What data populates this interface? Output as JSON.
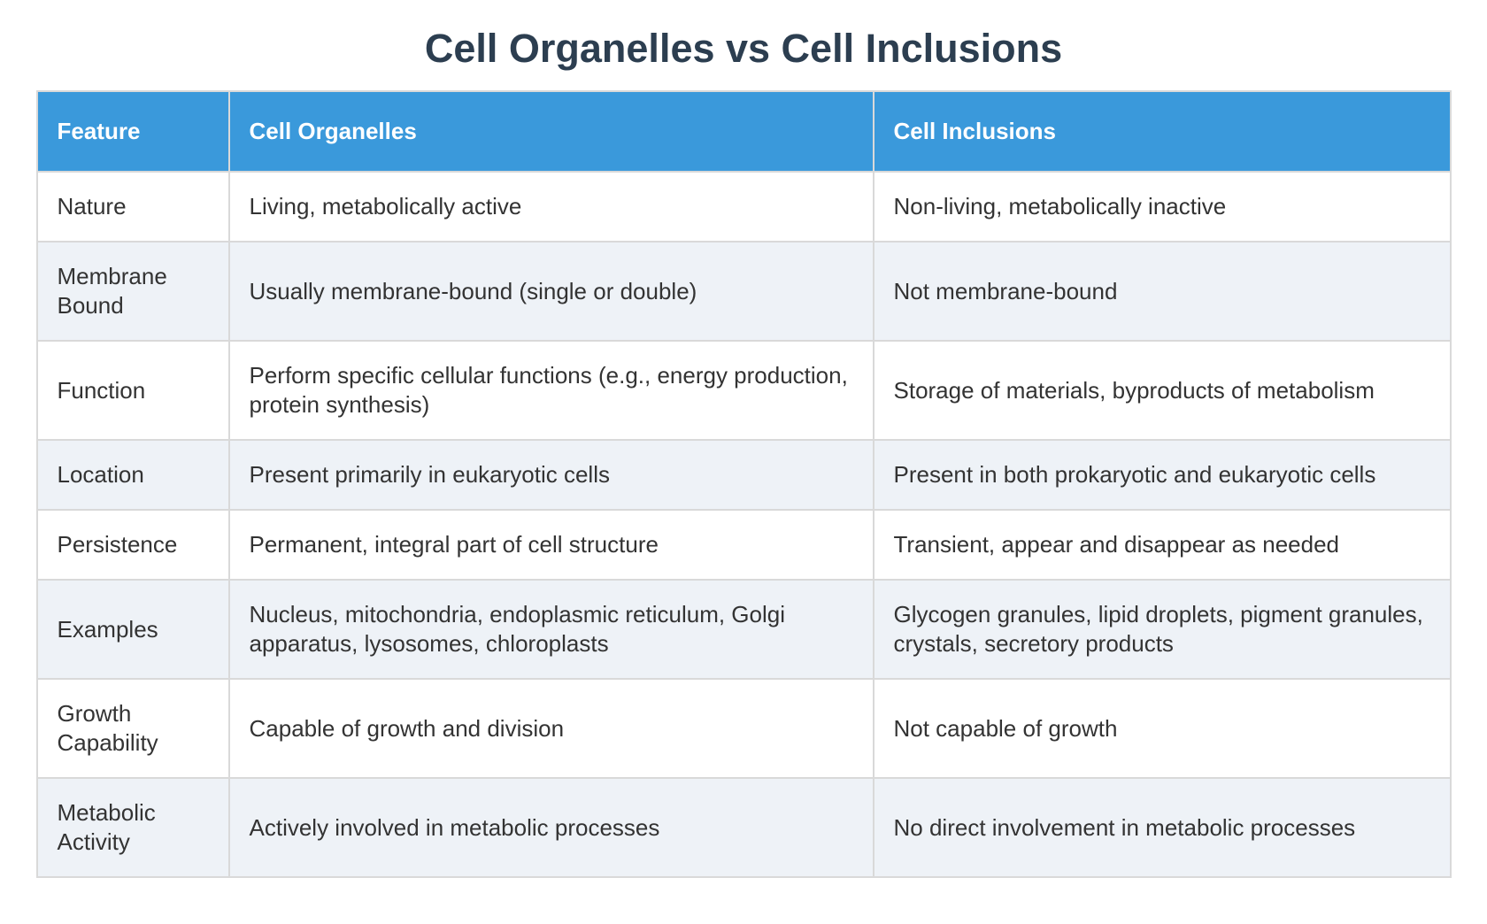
{
  "title": "Cell Organelles vs Cell Inclusions",
  "table": {
    "columns": [
      "Feature",
      "Cell Organelles",
      "Cell Inclusions"
    ],
    "rows": [
      {
        "feature": "Nature",
        "organelles": "Living, metabolically active",
        "inclusions": "Non-living, metabolically inactive"
      },
      {
        "feature": "Membrane Bound",
        "organelles": "Usually membrane-bound (single or double)",
        "inclusions": "Not membrane-bound"
      },
      {
        "feature": "Function",
        "organelles": "Perform specific cellular functions (e.g., energy production, protein synthesis)",
        "inclusions": "Storage of materials, byproducts of metabolism"
      },
      {
        "feature": "Location",
        "organelles": "Present primarily in eukaryotic cells",
        "inclusions": "Present in both prokaryotic and eukaryotic cells"
      },
      {
        "feature": "Persistence",
        "organelles": "Permanent, integral part of cell structure",
        "inclusions": "Transient, appear and disappear as needed"
      },
      {
        "feature": "Examples",
        "organelles": "Nucleus, mitochondria, endoplasmic reticulum, Golgi apparatus, lysosomes, chloroplasts",
        "inclusions": "Glycogen granules, lipid droplets, pigment granules, crystals, secretory products"
      },
      {
        "feature": "Growth Capability",
        "organelles": "Capable of growth and division",
        "inclusions": "Not capable of growth"
      },
      {
        "feature": "Metabolic Activity",
        "organelles": "Actively involved in metabolic processes",
        "inclusions": "No direct involvement in metabolic processes"
      }
    ]
  },
  "colors": {
    "header_bg": "#3a99db",
    "header_text": "#ffffff",
    "alt_row_bg": "#eef2f7",
    "grid": "#d9d9d9",
    "title_text": "#2c3e50",
    "body_text": "#333333"
  }
}
